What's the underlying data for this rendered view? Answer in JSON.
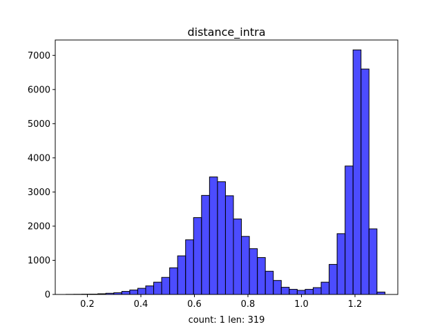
{
  "chart_data": {
    "type": "bar",
    "title": "distance_intra",
    "xlabel": "count: 1  len: 319",
    "ylabel": "",
    "xlim": [
      0.08,
      1.36
    ],
    "ylim": [
      0,
      7450
    ],
    "xticks": [
      0.2,
      0.4,
      0.6,
      0.8,
      1.0,
      1.2
    ],
    "xtick_labels": [
      "0.2",
      "0.4",
      "0.6",
      "0.8",
      "1.0",
      "1.2"
    ],
    "yticks": [
      0,
      1000,
      2000,
      3000,
      4000,
      5000,
      6000,
      7000
    ],
    "ytick_labels": [
      "0",
      "1000",
      "2000",
      "3000",
      "4000",
      "5000",
      "6000",
      "7000"
    ],
    "bin_start": 0.12,
    "bin_width": 0.0298,
    "values": [
      3,
      5,
      8,
      10,
      20,
      35,
      50,
      90,
      130,
      180,
      250,
      360,
      500,
      780,
      1130,
      1600,
      2250,
      2900,
      3440,
      3300,
      2890,
      2210,
      1700,
      1340,
      1080,
      680,
      410,
      210,
      150,
      120,
      150,
      200,
      360,
      880,
      1780,
      3760,
      7160,
      6600,
      1920,
      70
    ],
    "bar_color": "#0000ff",
    "bar_opacity": 0.7,
    "edge_color": "#000000",
    "grid": false
  }
}
